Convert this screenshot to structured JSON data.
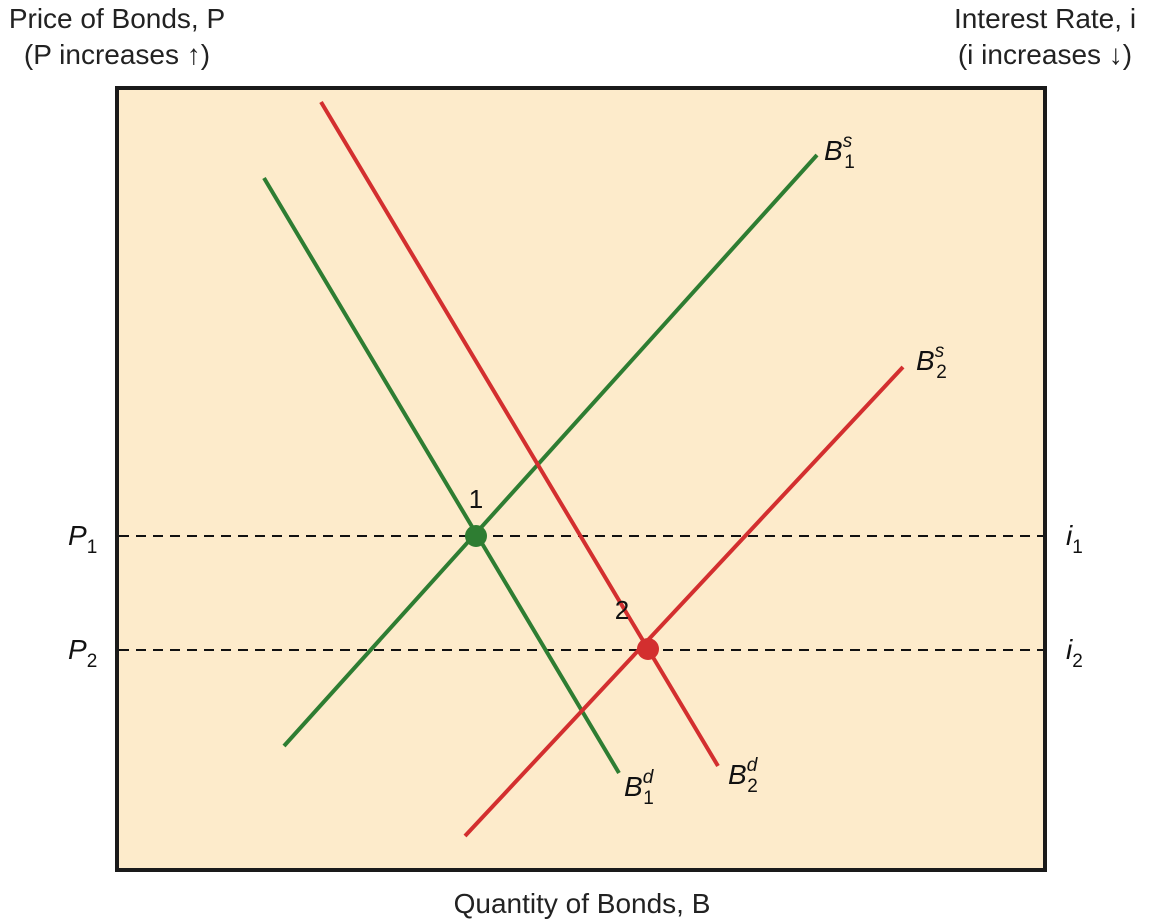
{
  "axes": {
    "left_title": "Price of Bonds, P",
    "left_subtitle": "(P increases ↑)",
    "right_title": "Interest Rate, i",
    "right_subtitle": "(i increases ↓)",
    "bottom_title": "Quantity of Bonds, B"
  },
  "levels": [
    {
      "left_label": "P",
      "left_sub": "1",
      "right_label": "i",
      "right_sub": "1"
    },
    {
      "left_label": "P",
      "left_sub": "2",
      "right_label": "i",
      "right_sub": "2"
    }
  ],
  "curves": [
    {
      "base": "B",
      "sup": "s",
      "sub": "1"
    },
    {
      "base": "B",
      "sup": "s",
      "sub": "2"
    },
    {
      "base": "B",
      "sup": "d",
      "sub": "1"
    },
    {
      "base": "B",
      "sup": "d",
      "sub": "2"
    }
  ],
  "points": [
    {
      "label": "1"
    },
    {
      "label": "2"
    }
  ],
  "colors": {
    "background": "#FDEBCB",
    "frame": "#1a1a1a",
    "green": "#2E7D32",
    "red": "#D32F2F"
  }
}
